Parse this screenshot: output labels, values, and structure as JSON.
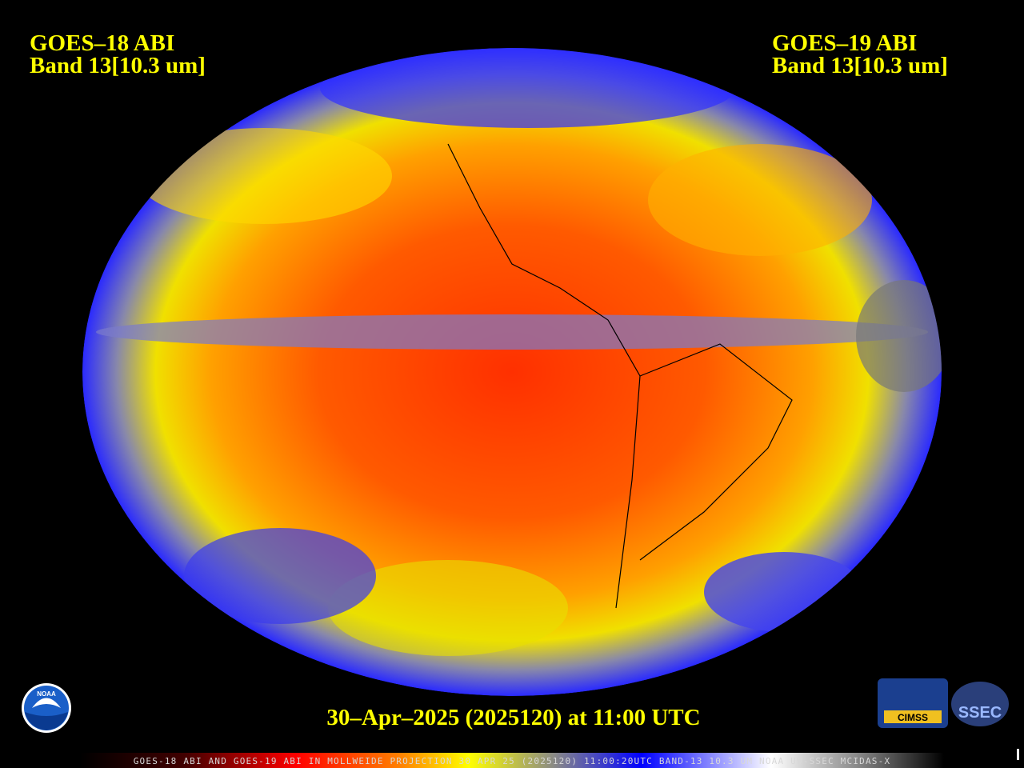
{
  "header": {
    "left": {
      "title": "GOES–18 ABI",
      "band": "Band 13[10.3 um]"
    },
    "right": {
      "title": "GOES–19 ABI",
      "band": "Band 13[10.3 um]"
    }
  },
  "timestamp": "30–Apr–2025 (2025120) at 11:00 UTC",
  "footer": "GOES-18 ABI AND GOES-19 ABI IN MOLLWEIDE PROJECTION 30 APR 25 (2025120) 11:00:20UTC BAND-13 10.3 UM NOAA UW-SSEC MCIDAS-X",
  "logos": {
    "noaa": "NOAA",
    "cimss": "CIMSS",
    "ssec": "SSEC"
  }
}
